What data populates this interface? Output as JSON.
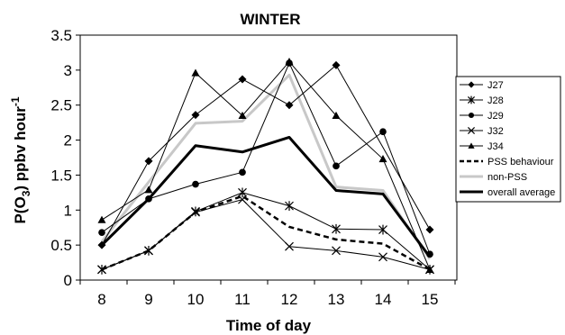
{
  "chart_data": {
    "type": "line",
    "title": "WINTER",
    "xlabel": "Time of day",
    "ylabel_parts": {
      "main": "P(O",
      "sub": "3",
      "mid": ") ppbv hour",
      "sup": "-1"
    },
    "x": [
      8,
      9,
      10,
      11,
      12,
      13,
      14,
      15
    ],
    "x_ticks": [
      "8",
      "9",
      "10",
      "11",
      "12",
      "13",
      "14",
      "15"
    ],
    "ylim": [
      0,
      3.5
    ],
    "y_ticks": [
      "0",
      "0.5",
      "1",
      "1.5",
      "2",
      "2.5",
      "3",
      "3.5"
    ],
    "grid": false,
    "legend_position": "right",
    "series": [
      {
        "name": "J27",
        "marker": "diamond",
        "color": "#000000",
        "width": 1,
        "dash": "",
        "values": [
          0.5,
          1.7,
          2.36,
          2.87,
          2.5,
          3.07,
          null,
          0.72
        ]
      },
      {
        "name": "J28",
        "marker": "asterisk",
        "color": "#000000",
        "width": 1,
        "dash": "",
        "values": [
          0.15,
          0.42,
          0.98,
          1.25,
          1.06,
          0.73,
          0.72,
          0.15
        ]
      },
      {
        "name": "J29",
        "marker": "circle",
        "color": "#000000",
        "width": 1,
        "dash": "",
        "values": [
          0.68,
          1.16,
          1.37,
          1.54,
          3.1,
          1.63,
          2.12,
          0.37
        ]
      },
      {
        "name": "J32",
        "marker": "cross",
        "color": "#000000",
        "width": 1,
        "dash": "",
        "values": [
          0.15,
          0.42,
          0.97,
          1.15,
          0.48,
          0.42,
          0.33,
          0.15
        ]
      },
      {
        "name": "J34",
        "marker": "triangle",
        "color": "#000000",
        "width": 1,
        "dash": "",
        "values": [
          0.86,
          1.29,
          2.96,
          2.35,
          3.12,
          2.35,
          1.73,
          0.15
        ]
      },
      {
        "name": "PSS behaviour",
        "marker": "none",
        "color": "#000000",
        "width": 2.5,
        "dash": "6,4",
        "values": [
          0.15,
          0.42,
          0.97,
          1.2,
          0.76,
          0.58,
          0.52,
          0.15
        ]
      },
      {
        "name": "non-PSS",
        "marker": "none",
        "color": "#c8c8c8",
        "width": 3,
        "dash": "",
        "values": [
          0.55,
          1.4,
          2.24,
          2.27,
          2.93,
          1.33,
          1.28,
          0.3
        ]
      },
      {
        "name": "overall average",
        "marker": "none",
        "color": "#000000",
        "width": 3,
        "dash": "",
        "values": [
          0.5,
          1.16,
          1.92,
          1.83,
          2.04,
          1.28,
          1.23,
          0.33
        ]
      }
    ]
  }
}
